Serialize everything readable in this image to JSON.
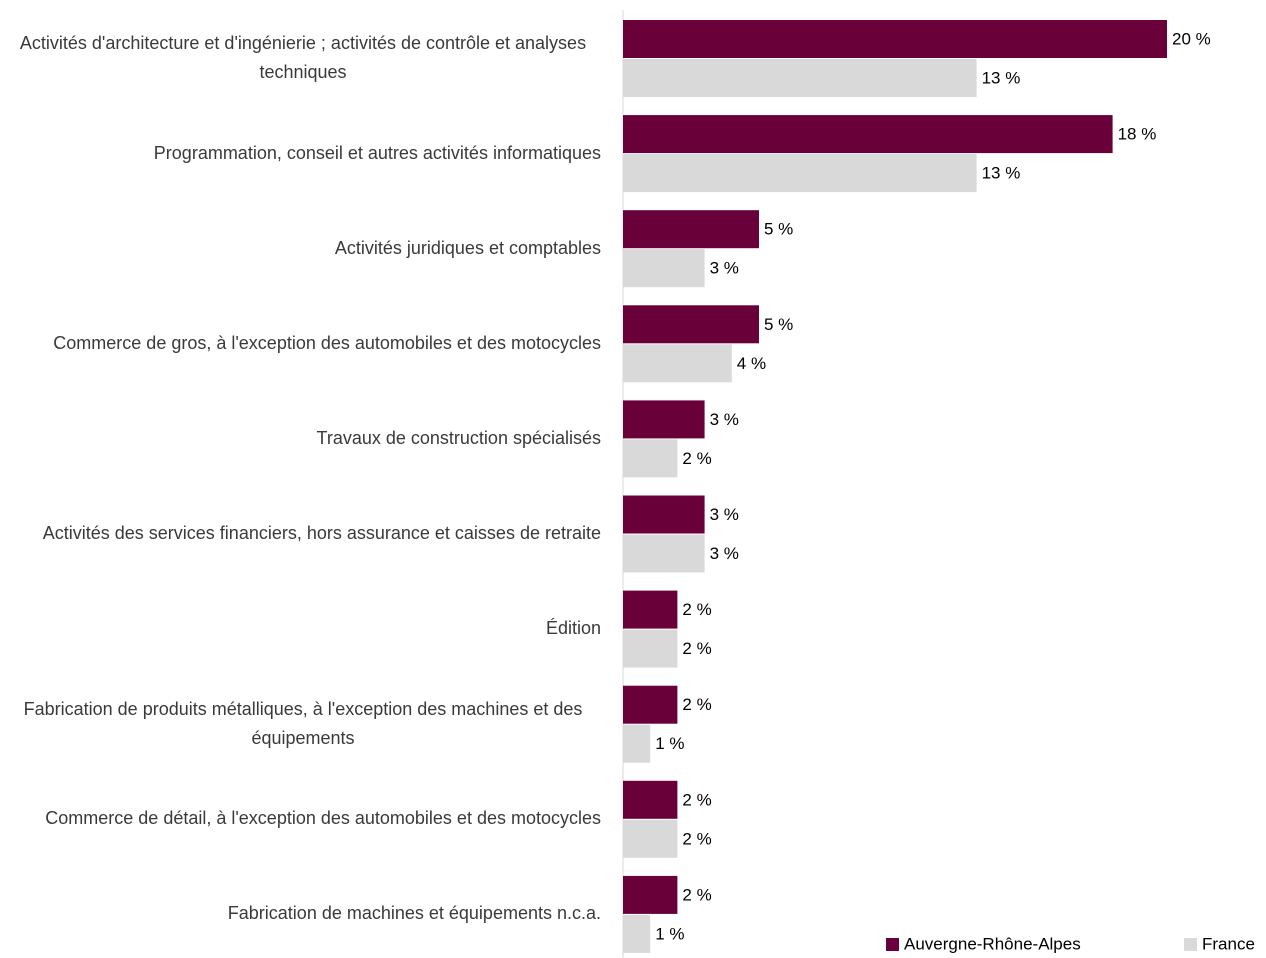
{
  "chart_data": {
    "type": "bar",
    "orientation": "horizontal",
    "categories": [
      "Activités d'architecture et d'ingénierie ; activités de contrôle et analyses techniques",
      "Programmation, conseil et autres activités informatiques",
      "Activités juridiques et comptables",
      "Commerce de gros, à l'exception des automobiles et des motocycles",
      "Travaux de construction spécialisés",
      "Activités des services financiers, hors assurance et caisses de retraite",
      "Édition",
      "Fabrication de produits métalliques, à l'exception des machines et des équipements",
      "Commerce de détail, à l'exception des automobiles et des motocycles",
      "Fabrication de machines et équipements n.c.a."
    ],
    "series": [
      {
        "name": "Auvergne-Rhône-Alpes",
        "color": "#6a003a",
        "values": [
          20,
          18,
          5,
          5,
          3,
          3,
          2,
          2,
          2,
          2
        ],
        "value_labels": [
          "20 %",
          "18 %",
          "5 %",
          "5 %",
          "3 %",
          "3 %",
          "2 %",
          "2 %",
          "2 %",
          "2 %"
        ]
      },
      {
        "name": "France",
        "color": "#d9d9d9",
        "values": [
          13,
          13,
          3,
          4,
          2,
          3,
          2,
          1,
          2,
          1
        ],
        "value_labels": [
          "13 %",
          "13 %",
          "3 %",
          "4 %",
          "2 %",
          "3 %",
          "2 %",
          "1 %",
          "2 %",
          "1 %"
        ]
      }
    ],
    "legend": "bottom-right"
  }
}
